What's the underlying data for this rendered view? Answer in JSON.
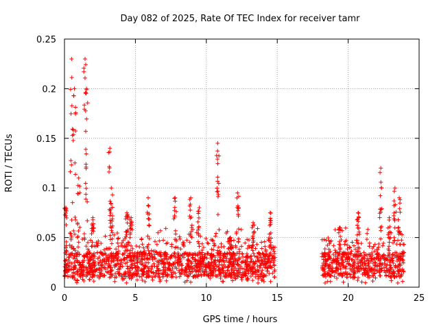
{
  "chart_data": {
    "type": "scatter",
    "title": "Day 082 of 2025, Rate Of TEC Index for receiver tamr",
    "xlabel": "GPS time / hours",
    "ylabel": "ROTI / TECUs",
    "xlim": [
      0,
      25
    ],
    "ylim": [
      0,
      0.25
    ],
    "xticks": [
      0,
      5,
      10,
      15,
      20,
      25
    ],
    "xtick_labels": [
      "0",
      "5",
      "10",
      "15",
      "20",
      "25"
    ],
    "yticks": [
      0,
      0.05,
      0.1,
      0.15,
      0.2,
      0.25
    ],
    "ytick_labels": [
      "0",
      "0.05",
      "0.1",
      "0.15",
      "0.2",
      "0.25"
    ],
    "grid": true,
    "marker": "+",
    "color": "#ff0000",
    "series": [
      {
        "name": "ROTI",
        "segments": [
          {
            "x_start": 0.0,
            "x_end": 14.85,
            "baseline": [
              0.01,
              0.035
            ],
            "upper_typical": 0.06
          },
          {
            "x_start": 18.15,
            "x_end": 23.95,
            "baseline": [
              0.01,
              0.035
            ],
            "upper_typical": 0.06
          }
        ],
        "peaks": [
          {
            "x": 0.1,
            "y": 0.08
          },
          {
            "x": 0.5,
            "y": 0.23
          },
          {
            "x": 0.7,
            "y": 0.2
          },
          {
            "x": 1.0,
            "y": 0.11
          },
          {
            "x": 1.45,
            "y": 0.23
          },
          {
            "x": 1.55,
            "y": 0.2
          },
          {
            "x": 2.0,
            "y": 0.07
          },
          {
            "x": 3.2,
            "y": 0.14
          },
          {
            "x": 3.3,
            "y": 0.1
          },
          {
            "x": 4.4,
            "y": 0.075
          },
          {
            "x": 4.7,
            "y": 0.07
          },
          {
            "x": 5.9,
            "y": 0.09
          },
          {
            "x": 7.8,
            "y": 0.09
          },
          {
            "x": 8.9,
            "y": 0.09
          },
          {
            "x": 9.5,
            "y": 0.08
          },
          {
            "x": 10.8,
            "y": 0.145
          },
          {
            "x": 11.7,
            "y": 0.05
          },
          {
            "x": 12.2,
            "y": 0.095
          },
          {
            "x": 13.3,
            "y": 0.065
          },
          {
            "x": 14.5,
            "y": 0.075
          },
          {
            "x": 19.4,
            "y": 0.06
          },
          {
            "x": 20.7,
            "y": 0.075
          },
          {
            "x": 22.3,
            "y": 0.12
          },
          {
            "x": 22.9,
            "y": 0.07
          },
          {
            "x": 23.3,
            "y": 0.1
          },
          {
            "x": 23.6,
            "y": 0.09
          }
        ]
      }
    ]
  }
}
